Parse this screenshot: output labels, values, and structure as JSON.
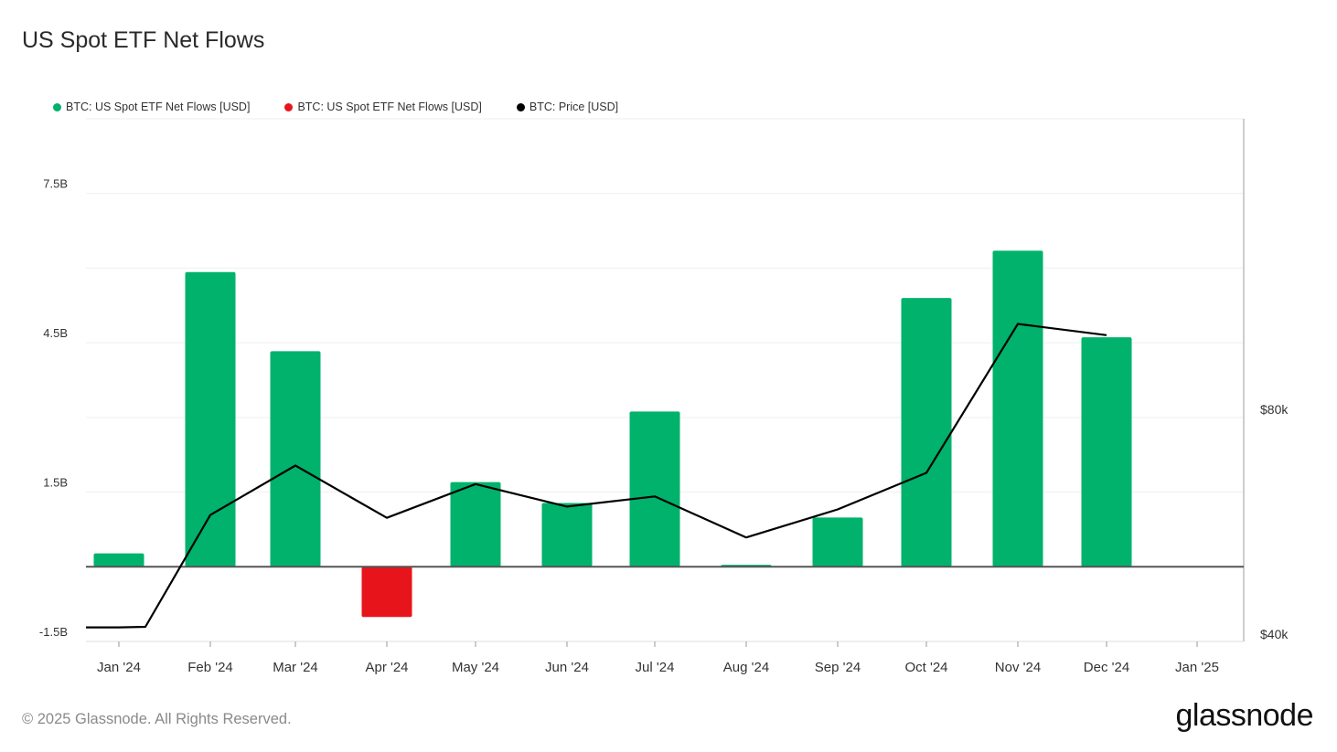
{
  "title": "US Spot ETF Net Flows",
  "footer": "© 2025 Glassnode. All Rights Reserved.",
  "brand": "glassnode",
  "legend": [
    {
      "label": "BTC: US Spot ETF Net Flows [USD]",
      "color": "#00b26b"
    },
    {
      "label": "BTC: US Spot ETF Net Flows [USD]",
      "color": "#e8141b"
    },
    {
      "label": "BTC: Price [USD]",
      "color": "#000000"
    }
  ],
  "chart_data": {
    "type": "bar",
    "title": "US Spot ETF Net Flows",
    "categories": [
      "Jan '24",
      "Feb '24",
      "Mar '24",
      "Apr '24",
      "May '24",
      "Jun '24",
      "Jul '24",
      "Aug '24",
      "Sep '24",
      "Oct '24",
      "Nov '24",
      "Dec '24",
      "Jan '25"
    ],
    "series": [
      {
        "name": "BTC: US Spot ETF Net Flows [USD]",
        "type": "bar",
        "axis": "left",
        "positive_color": "#00b26b",
        "negative_color": "#e8141b",
        "values": [
          0.27,
          5.92,
          4.33,
          -1.01,
          1.7,
          1.28,
          3.12,
          0.04,
          0.99,
          5.4,
          6.35,
          4.61,
          null
        ]
      },
      {
        "name": "BTC: Price [USD]",
        "type": "line",
        "axis": "right",
        "color": "#000000",
        "x": [
          "2024-01-01",
          "2024-01-10",
          "2024-02-01",
          "2024-03-01",
          "2024-04-01",
          "2024-05-01",
          "2024-06-01",
          "2024-07-01",
          "2024-08-01",
          "2024-09-01",
          "2024-10-01",
          "2024-11-01",
          "2024-12-01"
        ],
        "values": [
          42500,
          42600,
          62500,
          71300,
          62000,
          68000,
          64000,
          65800,
          58500,
          63500,
          70000,
          96500,
          94500
        ]
      }
    ],
    "left_axis": {
      "ticks": [
        -1.5,
        1.5,
        4.5,
        7.5
      ],
      "tick_labels": [
        "-1.5B",
        "1.5B",
        "4.5B",
        "7.5B"
      ],
      "ylim": [
        -1.5,
        9.0
      ]
    },
    "right_axis": {
      "ticks": [
        40000,
        80000
      ],
      "tick_labels": [
        "$40k",
        "$80k"
      ],
      "ylim": [
        40000,
        133000
      ]
    },
    "grid": true
  }
}
